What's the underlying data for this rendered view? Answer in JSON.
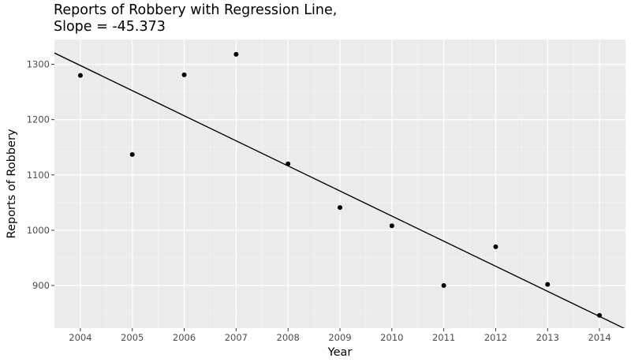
{
  "chart_data": {
    "type": "scatter",
    "title_lines": [
      "Reports of Robbery with Regression Line,",
      "Slope = -45.373"
    ],
    "xlabel": "Year",
    "ylabel": "Reports of Robbery",
    "x": [
      2004,
      2005,
      2006,
      2007,
      2008,
      2009,
      2010,
      2011,
      2012,
      2013,
      2014
    ],
    "y": [
      1280,
      1137,
      1281,
      1318,
      1120,
      1041,
      1008,
      900,
      970,
      902,
      846
    ],
    "xlim": [
      2003.5,
      2014.5
    ],
    "ylim": [
      823,
      1345
    ],
    "x_ticks": [
      2004,
      2005,
      2006,
      2007,
      2008,
      2009,
      2010,
      2011,
      2012,
      2013,
      2014
    ],
    "y_ticks": [
      900,
      1000,
      1100,
      1200,
      1300
    ],
    "regression": {
      "slope": -45.373,
      "intercept_at_2004": 1297.8
    },
    "grid": true,
    "colors": {
      "panel": "#ebebeb",
      "grid_major": "#ffffff",
      "points": "#000000",
      "line": "#000000"
    }
  }
}
